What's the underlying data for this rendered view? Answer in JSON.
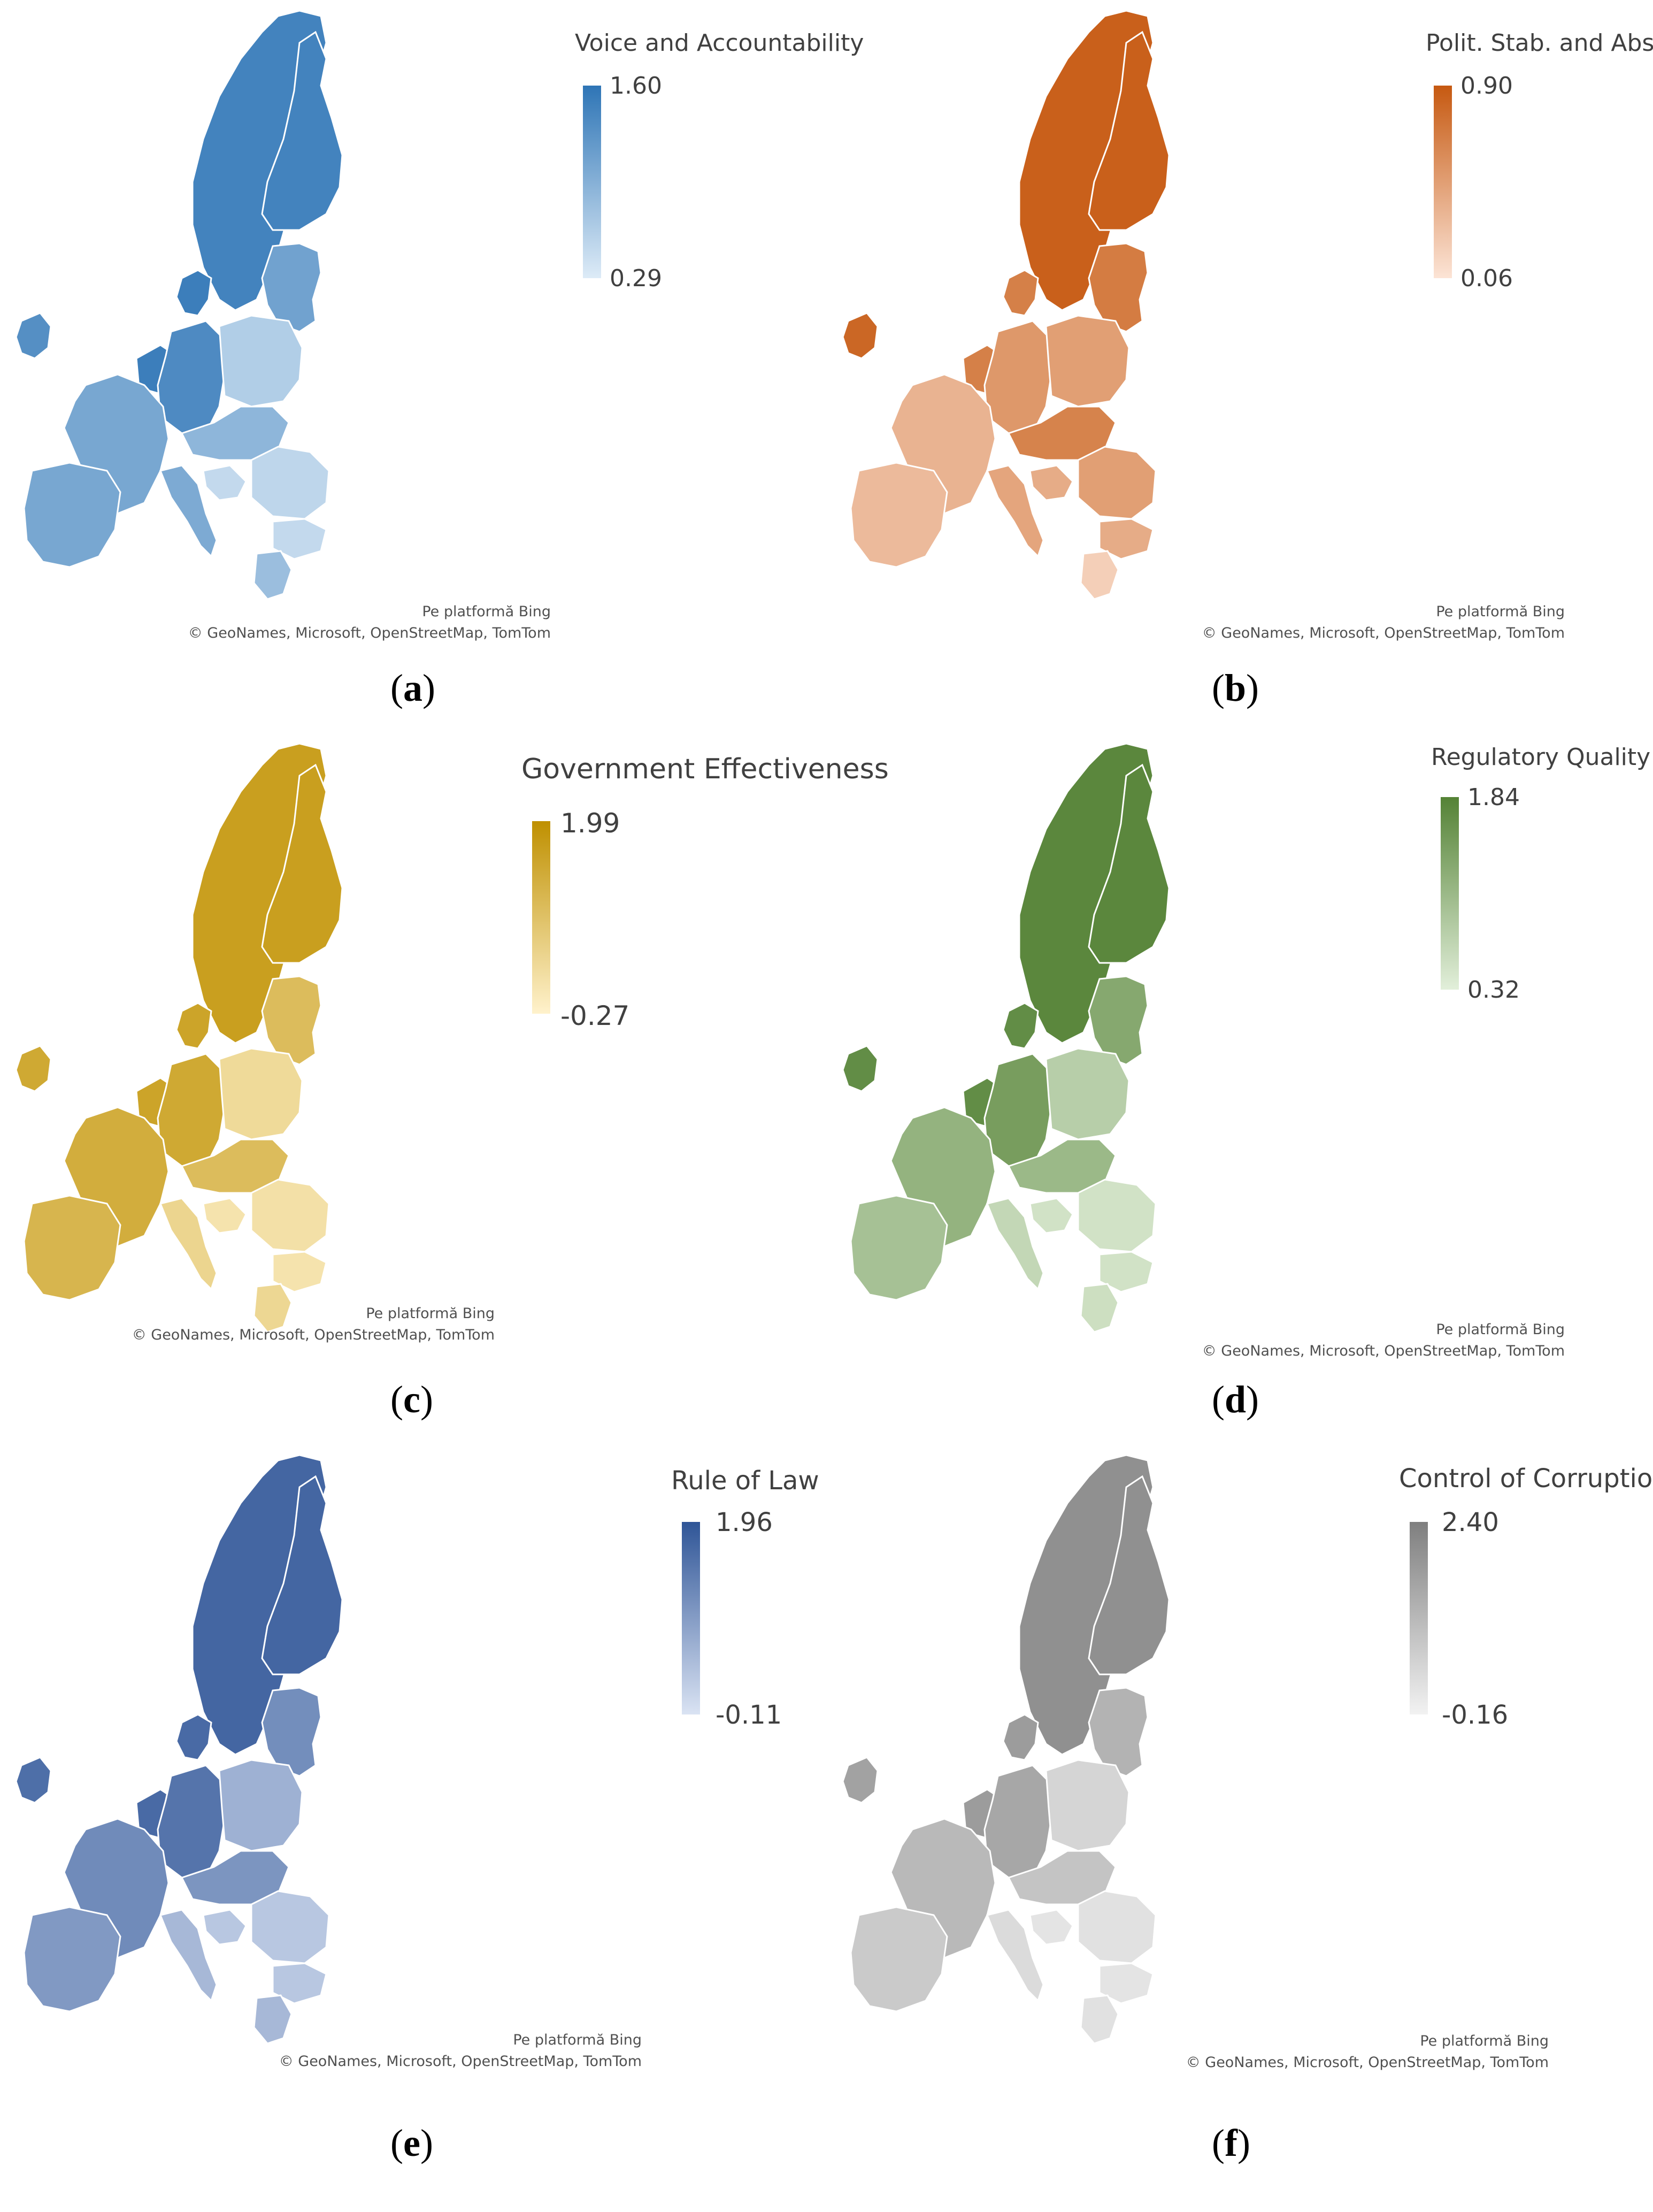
{
  "map_panels": [
    {
      "id": "a",
      "caption_letter": "a",
      "legend_title": "Voice and Accountability",
      "legend_max": "1.60",
      "legend_min": "0.29",
      "color_max": "#2e75b6",
      "color_min": "#ddebf7",
      "levels": {
        "nordic": 0.88,
        "baltic": 0.62,
        "uk_ie": 0.78,
        "benelux": 0.92,
        "germany": 0.82,
        "france": 0.58,
        "iberia": 0.58,
        "poland": 0.25,
        "central": 0.45,
        "east": 0.18,
        "italy": 0.55,
        "balkans": 0.15,
        "greece": 0.38
      },
      "attribution_line1": "Pe platformă Bing",
      "attribution_line2": "© GeoNames, Microsoft, OpenStreetMap, TomTom"
    },
    {
      "id": "b",
      "caption_letter": "b",
      "legend_title": "Polit. Stab. and Abs. V.",
      "legend_max": "0.90",
      "legend_min": "0.06",
      "color_max": "#c65911",
      "color_min": "#fce4d6",
      "levels": {
        "nordic": 0.95,
        "baltic": 0.75,
        "uk_ie": 0.9,
        "benelux": 0.72,
        "germany": 0.55,
        "france": 0.35,
        "iberia": 0.3,
        "poland": 0.5,
        "central": 0.7,
        "east": 0.5,
        "italy": 0.45,
        "balkans": 0.4,
        "greece": 0.15
      },
      "attribution_line1": "Pe platformă Bing",
      "attribution_line2": "© GeoNames, Microsoft, OpenStreetMap, TomTom"
    },
    {
      "id": "c",
      "caption_letter": "c",
      "legend_title": "Government Effectiveness",
      "legend_max": "1.99",
      "legend_min": "-0.27",
      "color_max": "#bf9000",
      "color_min": "#fff2cc",
      "levels": {
        "nordic": 0.85,
        "baltic": 0.55,
        "uk_ie": 0.75,
        "benelux": 0.8,
        "germany": 0.75,
        "france": 0.7,
        "iberia": 0.62,
        "poland": 0.25,
        "central": 0.55,
        "east": 0.18,
        "italy": 0.3,
        "balkans": 0.15,
        "greece": 0.28
      },
      "attribution_line1": "Pe platformă Bing",
      "attribution_line2": "© GeoNames, Microsoft, OpenStreetMap, TomTom"
    },
    {
      "id": "d",
      "caption_letter": "d",
      "legend_title": "Regulatory Quality",
      "legend_max": "1.84",
      "legend_min": "0.32",
      "color_max": "#548235",
      "color_min": "#e2efda",
      "levels": {
        "nordic": 0.95,
        "baltic": 0.65,
        "uk_ie": 0.9,
        "benelux": 0.9,
        "germany": 0.75,
        "france": 0.55,
        "iberia": 0.42,
        "poland": 0.3,
        "central": 0.5,
        "east": 0.12,
        "italy": 0.22,
        "balkans": 0.12,
        "greece": 0.15
      },
      "attribution_line1": "Pe platformă Bing",
      "attribution_line2": "© GeoNames, Microsoft, OpenStreetMap, TomTom"
    },
    {
      "id": "e",
      "caption_letter": "e",
      "legend_title": "Rule of Law",
      "legend_max": "1.96",
      "legend_min": "-0.11",
      "color_max": "#2f5597",
      "color_min": "#dae3f3",
      "levels": {
        "nordic": 0.88,
        "baltic": 0.6,
        "uk_ie": 0.82,
        "benelux": 0.85,
        "germany": 0.78,
        "france": 0.62,
        "iberia": 0.52,
        "poland": 0.35,
        "central": 0.55,
        "east": 0.2,
        "italy": 0.3,
        "balkans": 0.2,
        "greece": 0.3
      },
      "attribution_line1": "Pe platformă Bing",
      "attribution_line2": "© GeoNames, Microsoft, OpenStreetMap, TomTom"
    },
    {
      "id": "f",
      "caption_letter": "f",
      "legend_title": "Control of Corruption",
      "legend_max": "2.40",
      "legend_min": "-0.16",
      "color_max": "#7f7f7f",
      "color_min": "#f2f2f2",
      "levels": {
        "nordic": 0.85,
        "baltic": 0.55,
        "uk_ie": 0.7,
        "benelux": 0.75,
        "germany": 0.65,
        "france": 0.5,
        "iberia": 0.35,
        "poland": 0.25,
        "central": 0.4,
        "east": 0.15,
        "italy": 0.2,
        "balkans": 0.12,
        "greece": 0.15
      },
      "attribution_line1": "Pe platformă Bing",
      "attribution_line2": "© GeoNames, Microsoft, OpenStreetMap, TomTom"
    }
  ]
}
